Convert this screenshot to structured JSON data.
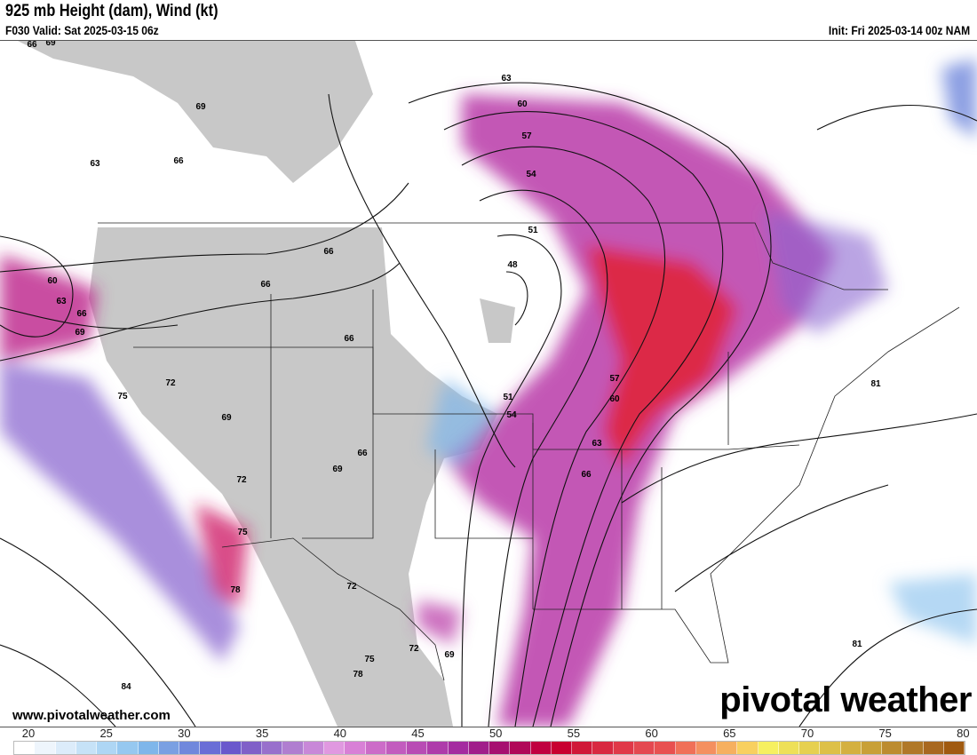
{
  "header": {
    "title": "925 mb Height (dam), Wind (kt)",
    "valid": "F030 Valid: Sat 2025-03-15 06z",
    "init": "Init: Fri 2025-03-14 00z NAM"
  },
  "footer": {
    "website": "www.pivotalweather.com",
    "logo": "pivotal weather"
  },
  "colorbar": {
    "ticks": [
      "20",
      "25",
      "30",
      "35",
      "40",
      "45",
      "50",
      "55",
      "60",
      "65",
      "70",
      "75",
      "80"
    ],
    "min": 20,
    "max": 80,
    "colors": [
      "#ffffff",
      "#eef5fc",
      "#dcecfa",
      "#c6e2f7",
      "#aed6f4",
      "#96c8f0",
      "#7fb6ea",
      "#7aa0e2",
      "#7088dc",
      "#6a6ed6",
      "#6a58cc",
      "#8060c8",
      "#9870cc",
      "#b07ed0",
      "#c888d8",
      "#e098e0",
      "#d880d6",
      "#cc6cc8",
      "#c25cbe",
      "#b84cb4",
      "#ae3caa",
      "#a42ca0",
      "#a01e8a",
      "#a61070",
      "#b00858",
      "#c00040",
      "#c80030",
      "#d01838",
      "#d82840",
      "#e03848",
      "#e44850",
      "#e85050",
      "#f07058",
      "#f49060",
      "#f6b060",
      "#f8d060",
      "#f6f060",
      "#eee058",
      "#e6d050",
      "#ddc048",
      "#d4b040",
      "#c8a038",
      "#bc8c30",
      "#b07828",
      "#a86820",
      "#a05a10"
    ]
  },
  "contour_labels": [
    {
      "text": "66"
    },
    {
      "text": "69"
    },
    {
      "text": "69"
    },
    {
      "text": "63"
    },
    {
      "text": "66"
    },
    {
      "text": "66"
    },
    {
      "text": "66"
    },
    {
      "text": "60"
    },
    {
      "text": "63"
    },
    {
      "text": "66"
    },
    {
      "text": "69"
    },
    {
      "text": "66"
    },
    {
      "text": "75"
    },
    {
      "text": "72"
    },
    {
      "text": "69"
    },
    {
      "text": "72"
    },
    {
      "text": "69"
    },
    {
      "text": "66"
    },
    {
      "text": "75"
    },
    {
      "text": "78"
    },
    {
      "text": "72"
    },
    {
      "text": "75"
    },
    {
      "text": "78"
    },
    {
      "text": "72"
    },
    {
      "text": "69"
    },
    {
      "text": "84"
    },
    {
      "text": "63"
    },
    {
      "text": "60"
    },
    {
      "text": "57"
    },
    {
      "text": "54"
    },
    {
      "text": "51"
    },
    {
      "text": "48"
    },
    {
      "text": "51"
    },
    {
      "text": "54"
    },
    {
      "text": "57"
    },
    {
      "text": "60"
    },
    {
      "text": "63"
    },
    {
      "text": "66"
    },
    {
      "text": "81"
    },
    {
      "text": "81"
    }
  ]
}
